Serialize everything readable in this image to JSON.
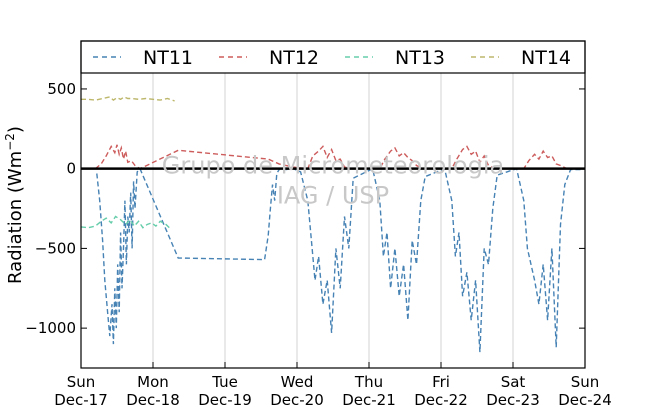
{
  "chart_data": {
    "type": "line",
    "title": "",
    "xlabel": "",
    "ylabel": "Radiation (Wm",
    "ylabel_sup": "−2",
    "ylabel_tail": ")",
    "xlim": [
      0,
      7
    ],
    "ylim": [
      -1250,
      600
    ],
    "grid": "vertical",
    "legend_position": "top",
    "x_ticks": [
      {
        "x": 0,
        "label_day": "Sun",
        "label_date": "Dec-17"
      },
      {
        "x": 1,
        "label_day": "Mon",
        "label_date": "Dec-18"
      },
      {
        "x": 2,
        "label_day": "Tue",
        "label_date": "Dec-19"
      },
      {
        "x": 3,
        "label_day": "Wed",
        "label_date": "Dec-20"
      },
      {
        "x": 4,
        "label_day": "Thu",
        "label_date": "Dec-21"
      },
      {
        "x": 5,
        "label_day": "Fri",
        "label_date": "Dec-22"
      },
      {
        "x": 6,
        "label_day": "Sat",
        "label_date": "Dec-23"
      },
      {
        "x": 7,
        "label_day": "Sun",
        "label_date": "Dec-24"
      }
    ],
    "y_ticks": [
      {
        "value": 500,
        "label": "500"
      },
      {
        "value": 0,
        "label": "0"
      },
      {
        "value": -500,
        "label": "−500"
      },
      {
        "value": -1000,
        "label": "−1000"
      }
    ],
    "watermark": [
      "Grupo de Micrometeorologia",
      "IAG / USP"
    ],
    "series": [
      {
        "name": "NT11",
        "color": "#4682b4",
        "x": [
          0.22,
          0.26,
          0.3,
          0.33,
          0.37,
          0.4,
          0.43,
          0.45,
          0.47,
          0.49,
          0.51,
          0.53,
          0.55,
          0.57,
          0.59,
          0.61,
          0.63,
          0.65,
          0.67,
          0.69,
          0.71,
          0.73,
          0.75,
          0.78,
          0.82,
          1.35,
          2.55,
          2.6,
          2.63,
          2.66,
          2.69,
          2.72,
          2.76,
          2.85,
          2.95,
          3.05,
          3.15,
          3.2,
          3.25,
          3.3,
          3.36,
          3.42,
          3.48,
          3.54,
          3.6,
          3.66,
          3.72,
          3.78,
          4.05,
          4.15,
          4.2,
          4.25,
          4.3,
          4.36,
          4.42,
          4.48,
          4.54,
          4.6,
          4.66,
          4.72,
          4.78,
          5.05,
          5.15,
          5.2,
          5.25,
          5.3,
          5.36,
          5.42,
          5.48,
          5.54,
          5.6,
          5.66,
          5.72,
          5.78,
          6.05,
          6.15,
          6.2,
          6.25,
          6.3,
          6.36,
          6.42,
          6.48,
          6.54,
          6.6,
          6.66,
          6.72,
          6.8,
          6.95
        ],
        "y": [
          -30,
          -200,
          -450,
          -700,
          -900,
          -1050,
          -850,
          -1100,
          -750,
          -1000,
          -600,
          -900,
          -400,
          -750,
          -500,
          -200,
          -600,
          -300,
          -400,
          -150,
          -500,
          -80,
          -250,
          -20,
          0,
          -560,
          -570,
          -420,
          -250,
          -100,
          -200,
          -30,
          0,
          -5,
          0,
          -20,
          -200,
          -450,
          -700,
          -550,
          -850,
          -700,
          -1030,
          -500,
          -750,
          -300,
          -500,
          -60,
          0,
          -200,
          -550,
          -400,
          -750,
          -500,
          -800,
          -600,
          -950,
          -450,
          -600,
          -200,
          -50,
          0,
          -200,
          -550,
          -400,
          -800,
          -650,
          -950,
          -700,
          -1150,
          -500,
          -600,
          -250,
          -40,
          0,
          -200,
          -500,
          -600,
          -700,
          -850,
          -600,
          -950,
          -500,
          -1120,
          -350,
          -100,
          -5,
          -5
        ]
      },
      {
        "name": "NT12",
        "color": "#cd5c5c",
        "x": [
          0.2,
          0.28,
          0.35,
          0.42,
          0.47,
          0.5,
          0.53,
          0.56,
          0.59,
          0.62,
          0.65,
          0.7,
          0.75,
          0.82,
          1.35,
          2.6,
          2.75,
          2.95,
          3.15,
          3.22,
          3.3,
          3.36,
          3.42,
          3.48,
          3.54,
          3.6,
          3.66,
          3.75,
          3.85,
          4.15,
          4.22,
          4.3,
          4.36,
          4.42,
          4.48,
          4.54,
          4.6,
          4.66,
          4.75,
          4.85,
          5.15,
          5.22,
          5.3,
          5.36,
          5.42,
          5.48,
          5.54,
          5.6,
          5.66,
          5.75,
          5.85,
          6.15,
          6.22,
          6.3,
          6.36,
          6.42,
          6.48,
          6.54,
          6.6,
          6.66,
          6.75,
          6.9
        ],
        "y": [
          0,
          30,
          80,
          140,
          100,
          150,
          90,
          130,
          60,
          110,
          40,
          50,
          20,
          0,
          115,
          60,
          30,
          10,
          0,
          80,
          110,
          140,
          70,
          120,
          50,
          60,
          10,
          0,
          0,
          0,
          60,
          110,
          130,
          80,
          100,
          70,
          50,
          20,
          0,
          0,
          0,
          60,
          120,
          140,
          90,
          110,
          40,
          80,
          20,
          0,
          0,
          0,
          50,
          90,
          60,
          110,
          70,
          80,
          30,
          20,
          0,
          0
        ]
      },
      {
        "name": "NT13",
        "color": "#66cdaa",
        "x": [
          0.0,
          0.1,
          0.2,
          0.28,
          0.35,
          0.42,
          0.48,
          0.55,
          0.62,
          0.68,
          0.74,
          0.8,
          0.86,
          0.92,
          0.98,
          1.04,
          1.1,
          1.18,
          1.25
        ],
        "y": [
          -365,
          -370,
          -360,
          -330,
          -310,
          -340,
          -300,
          -320,
          -350,
          -320,
          -360,
          -330,
          -370,
          -350,
          -340,
          -360,
          -330,
          -350,
          -380
        ]
      },
      {
        "name": "NT14",
        "color": "#bdb76b",
        "x": [
          0.0,
          0.1,
          0.2,
          0.3,
          0.4,
          0.45,
          0.5,
          0.55,
          0.6,
          0.65,
          0.7,
          0.8,
          0.9,
          1.0,
          1.1,
          1.2,
          1.3
        ],
        "y": [
          435,
          435,
          430,
          440,
          450,
          430,
          445,
          435,
          450,
          440,
          440,
          435,
          440,
          435,
          430,
          440,
          425
        ]
      }
    ]
  }
}
